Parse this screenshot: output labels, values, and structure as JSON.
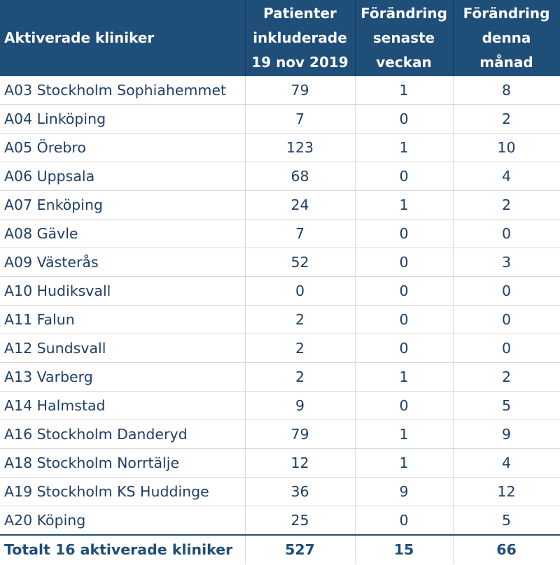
{
  "header": {
    "col1": "Aktiverade kliniker",
    "col2": [
      "Patienter",
      "inkluderade",
      "19 nov 2019"
    ],
    "col3": [
      "Förändring",
      "senaste",
      "veckan"
    ],
    "col4": [
      "Förändring",
      "denna",
      "månad"
    ]
  },
  "rows": [
    {
      "name": "A03 Stockholm Sophiahemmet",
      "patients": "79",
      "week": "1",
      "month": "8"
    },
    {
      "name": "A04 Linköping",
      "patients": "7",
      "week": "0",
      "month": "2"
    },
    {
      "name": "A05 Örebro",
      "patients": "123",
      "week": "1",
      "month": "10"
    },
    {
      "name": "A06 Uppsala",
      "patients": "68",
      "week": "0",
      "month": "4"
    },
    {
      "name": "A07 Enköping",
      "patients": "24",
      "week": "1",
      "month": "2"
    },
    {
      "name": "A08 Gävle",
      "patients": "7",
      "week": "0",
      "month": "0"
    },
    {
      "name": "A09 Västerås",
      "patients": "52",
      "week": "0",
      "month": "3"
    },
    {
      "name": "A10 Hudiksvall",
      "patients": "0",
      "week": "0",
      "month": "0"
    },
    {
      "name": "A11 Falun",
      "patients": "2",
      "week": "0",
      "month": "0"
    },
    {
      "name": "A12 Sundsvall",
      "patients": "2",
      "week": "0",
      "month": "0"
    },
    {
      "name": "A13 Varberg",
      "patients": "2",
      "week": "1",
      "month": "2"
    },
    {
      "name": "A14 Halmstad",
      "patients": "9",
      "week": "0",
      "month": "5"
    },
    {
      "name": "A16 Stockholm Danderyd",
      "patients": "79",
      "week": "1",
      "month": "9"
    },
    {
      "name": "A18 Stockholm Norrtälje",
      "patients": "12",
      "week": "1",
      "month": "4"
    },
    {
      "name": "A19 Stockholm KS Huddinge",
      "patients": "36",
      "week": "9",
      "month": "12"
    },
    {
      "name": "A20 Köping",
      "patients": "25",
      "week": "0",
      "month": "5"
    }
  ],
  "total": {
    "name": "Totalt 16 aktiverade kliniker",
    "patients": "527",
    "week": "15",
    "month": "66"
  },
  "colors": {
    "header_bg": "#1f4e79",
    "header_text": "#ffffff",
    "body_text": "#1f3f66",
    "grid": "#d9d9d9"
  }
}
